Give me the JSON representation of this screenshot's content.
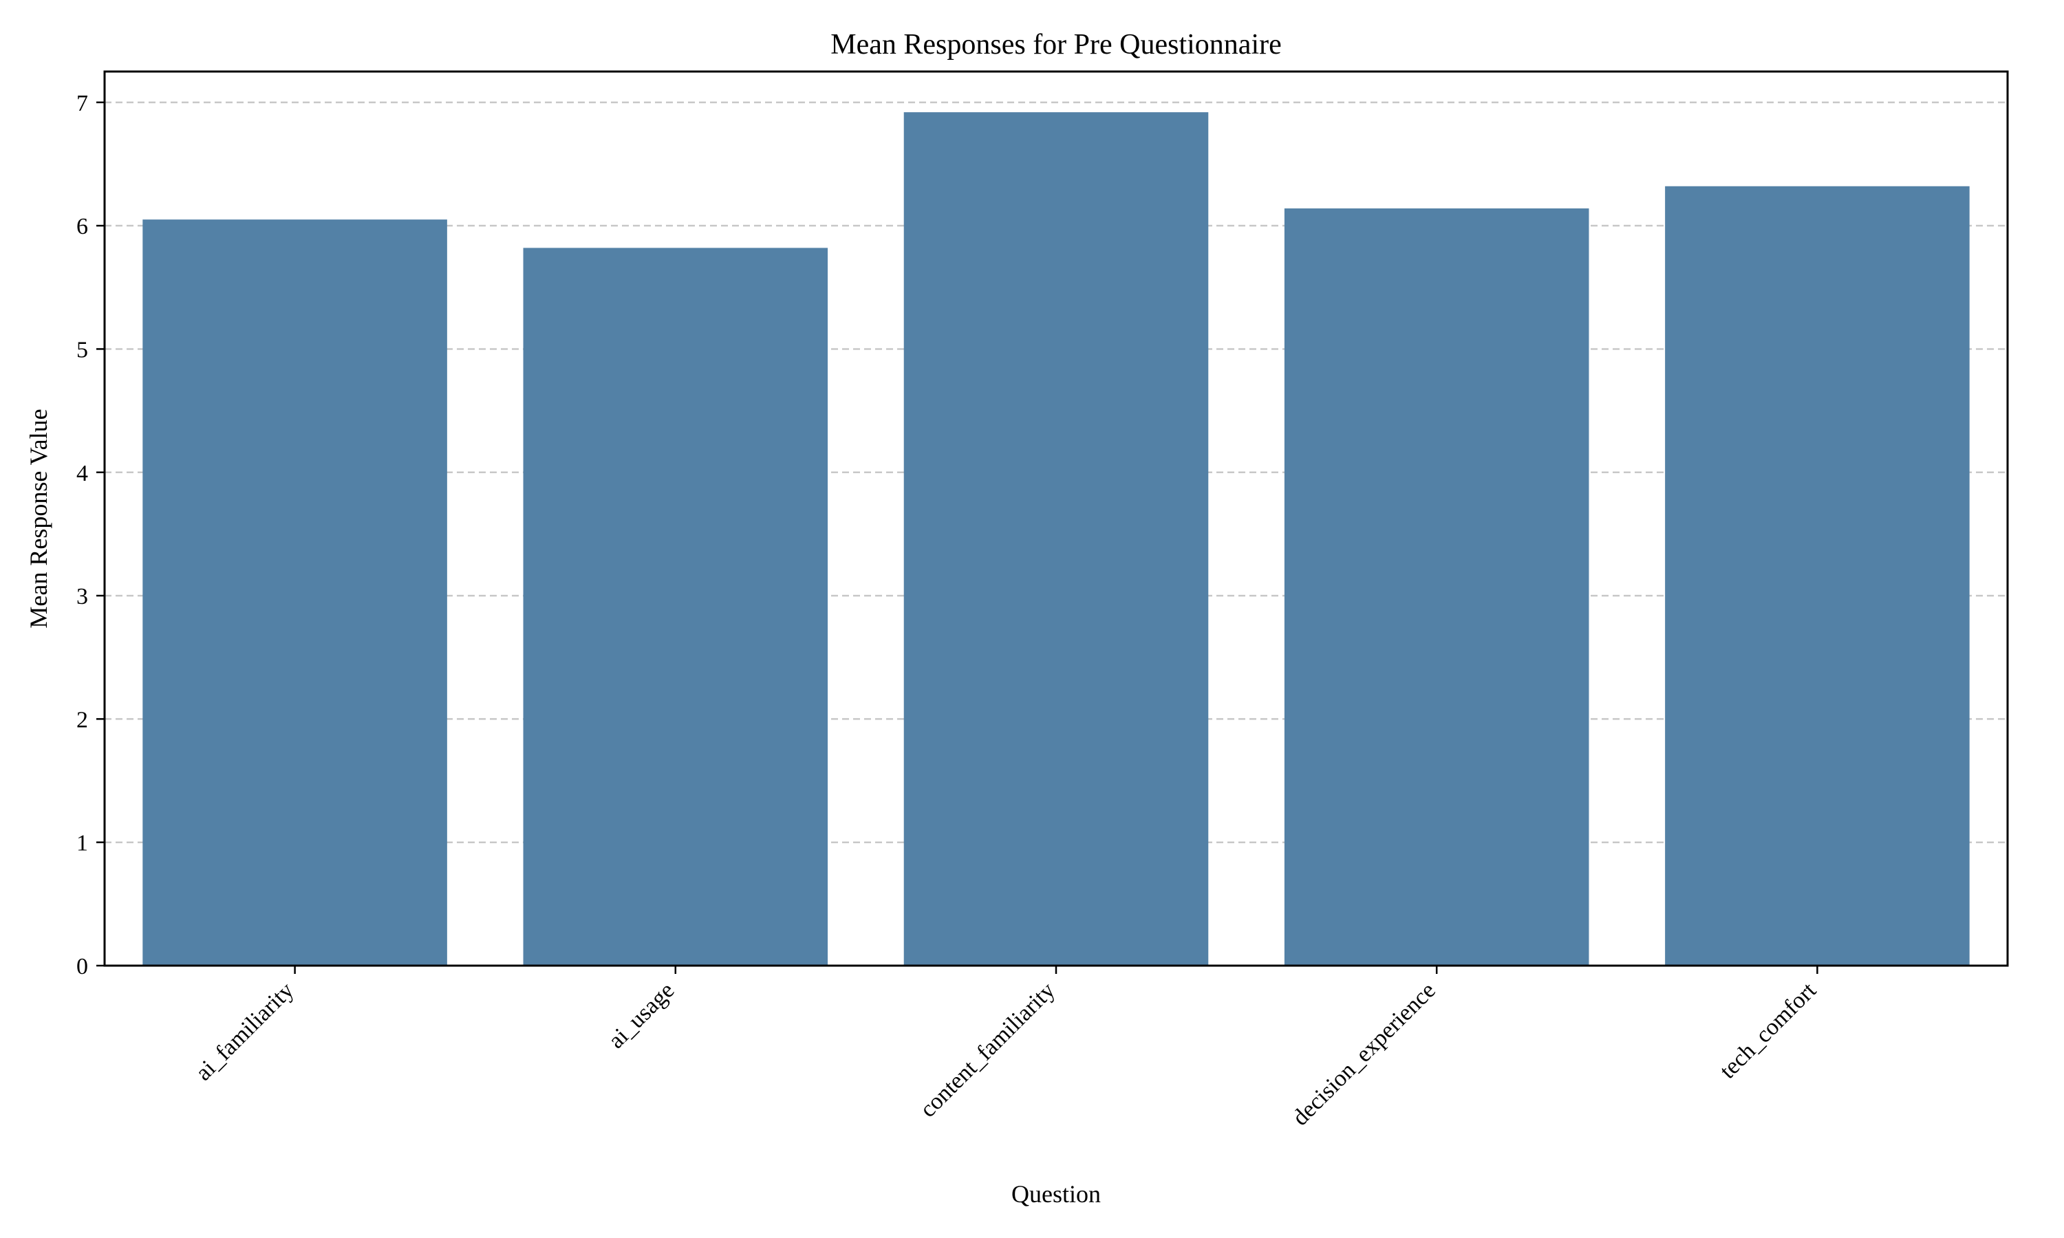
{
  "chart_data": {
    "type": "bar",
    "title": "Mean Responses for Pre Questionnaire",
    "xlabel": "Question",
    "ylabel": "Mean Response Value",
    "categories": [
      "ai_familiarity",
      "ai_usage",
      "content_familiarity",
      "decision_experience",
      "tech_comfort"
    ],
    "values": [
      6.05,
      5.82,
      6.92,
      6.14,
      6.32
    ],
    "ylim": [
      0,
      7.25
    ],
    "yticks": [
      0,
      1,
      2,
      3,
      4,
      5,
      6,
      7
    ],
    "grid": "horizontal-dashed",
    "legend": "none",
    "colors": {
      "bar": "#5381a6",
      "grid": "#c8c8c8",
      "axis": "#000000"
    }
  }
}
